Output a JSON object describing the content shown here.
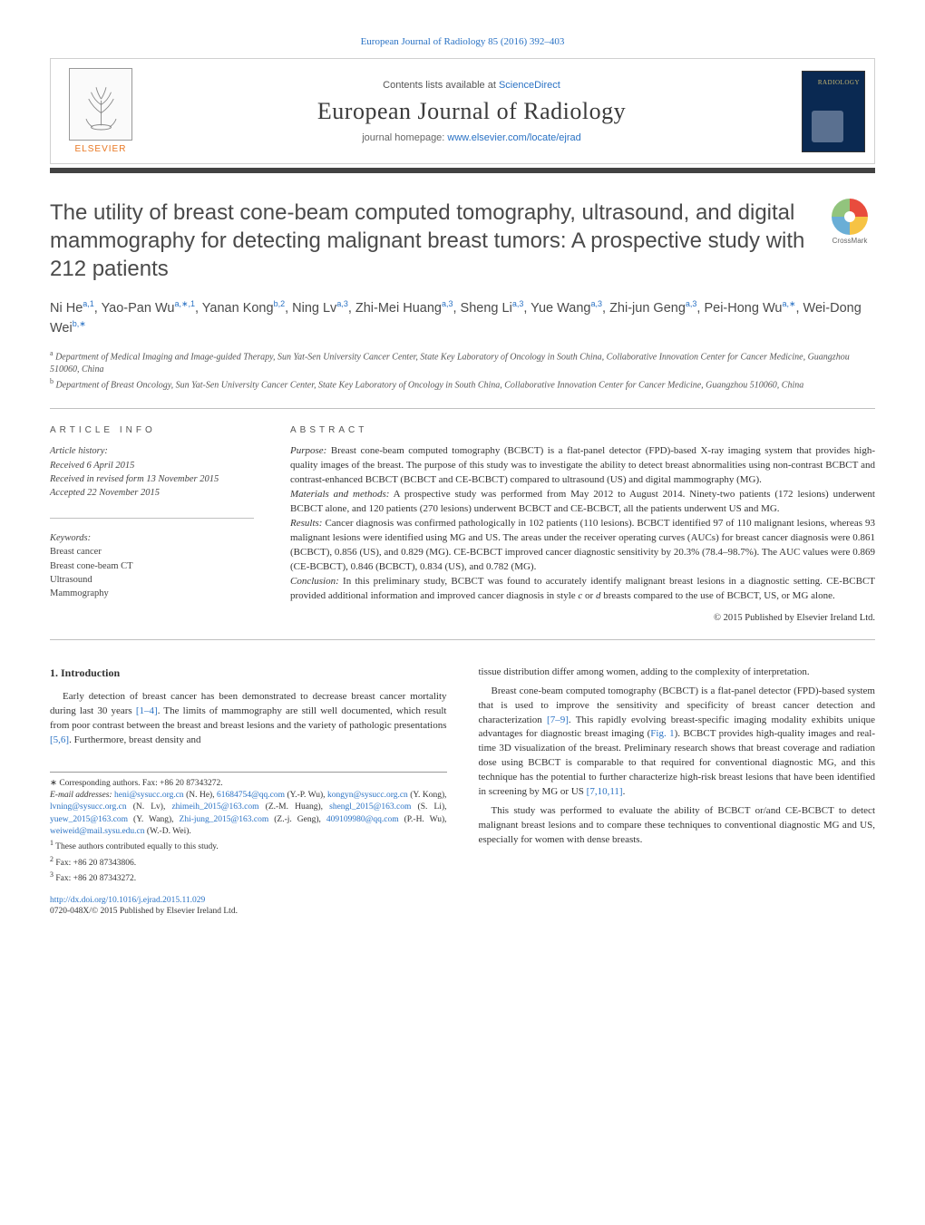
{
  "header": {
    "citation": "European Journal of Radiology 85 (2016) 392–403",
    "contents_prefix": "Contents lists available at ",
    "contents_link": "ScienceDirect",
    "journal_name": "European Journal of Radiology",
    "homepage_prefix": "journal homepage: ",
    "homepage_url": "www.elsevier.com/locate/ejrad",
    "publisher": "ELSEVIER"
  },
  "crossmark_label": "CrossMark",
  "title": "The utility of breast cone-beam computed tomography, ultrasound, and digital mammography for detecting malignant breast tumors: A prospective study with 212 patients",
  "authors_html": "Ni He<sup>a,1</sup>, Yao-Pan Wu<sup>a,∗,1</sup>, Yanan Kong<sup>b,2</sup>, Ning Lv<sup>a,3</sup>, Zhi-Mei Huang<sup>a,3</sup>, Sheng Li<sup>a,3</sup>, Yue Wang<sup>a,3</sup>, Zhi-jun Geng<sup>a,3</sup>, Pei-Hong Wu<sup>a,∗</sup>, Wei-Dong Wei<sup>b,∗</sup>",
  "affiliations": [
    {
      "mark": "a",
      "text": "Department of Medical Imaging and Image-guided Therapy, Sun Yat-Sen University Cancer Center, State Key Laboratory of Oncology in South China, Collaborative Innovation Center for Cancer Medicine, Guangzhou 510060, China"
    },
    {
      "mark": "b",
      "text": "Department of Breast Oncology, Sun Yat-Sen University Cancer Center, State Key Laboratory of Oncology in South China, Collaborative Innovation Center for Cancer Medicine, Guangzhou 510060, China"
    }
  ],
  "article_info_head": "ARTICLE INFO",
  "abstract_head": "ABSTRACT",
  "history": {
    "label": "Article history:",
    "received": "Received 6 April 2015",
    "revised": "Received in revised form 13 November 2015",
    "accepted": "Accepted 22 November 2015"
  },
  "keywords": {
    "label": "Keywords:",
    "items": [
      "Breast cancer",
      "Breast cone-beam CT",
      "Ultrasound",
      "Mammography"
    ]
  },
  "abstract": {
    "purpose_label": "Purpose:",
    "purpose": " Breast cone-beam computed tomography (BCBCT) is a flat-panel detector (FPD)-based X-ray imaging system that provides high-quality images of the breast. The purpose of this study was to investigate the ability to detect breast abnormalities using non-contrast BCBCT and contrast-enhanced BCBCT (BCBCT and CE-BCBCT) compared to ultrasound (US) and digital mammography (MG).",
    "mm_label": "Materials and methods:",
    "mm": " A prospective study was performed from May 2012 to August 2014. Ninety-two patients (172 lesions) underwent BCBCT alone, and 120 patients (270 lesions) underwent BCBCT and CE-BCBCT, all the patients underwent US and MG.",
    "results_label": "Results:",
    "results": " Cancer diagnosis was confirmed pathologically in 102 patients (110 lesions). BCBCT identified 97 of 110 malignant lesions, whereas 93 malignant lesions were identified using MG and US. The areas under the receiver operating curves (AUCs) for breast cancer diagnosis were 0.861 (BCBCT), 0.856 (US), and 0.829 (MG). CE-BCBCT improved cancer diagnostic sensitivity by 20.3% (78.4–98.7%). The AUC values were 0.869 (CE-BCBCT), 0.846 (BCBCT), 0.834 (US), and 0.782 (MG).",
    "conclusion_label": "Conclusion:",
    "conclusion_1": " In this preliminary study, BCBCT was found to accurately identify malignant breast lesions in a diagnostic setting. CE-BCBCT provided additional information and improved cancer diagnosis in style ",
    "conclusion_em1": "c",
    "conclusion_2": " or ",
    "conclusion_em2": "d",
    "conclusion_3": " breasts compared to the use of BCBCT, US, or MG alone.",
    "copyright": "© 2015 Published by Elsevier Ireland Ltd."
  },
  "intro": {
    "heading": "1. Introduction",
    "p_left_1a": "Early detection of breast cancer has been demonstrated to decrease breast cancer mortality during last 30 years ",
    "p_left_1_cite1": "[1–4]",
    "p_left_1b": ". The limits of mammography are still well documented, which result from poor contrast between the breast and breast lesions and the variety of pathologic presentations ",
    "p_left_1_cite2": "[5,6]",
    "p_left_1c": ". Furthermore, breast density and",
    "p_right_1": "tissue distribution differ among women, adding to the complexity of interpretation.",
    "p_right_2a": "Breast cone-beam computed tomography (BCBCT) is a flat-panel detector (FPD)-based system that is used to improve the sensitivity and specificity of breast cancer detection and characterization ",
    "p_right_2_cite1": "[7–9]",
    "p_right_2b": ". This rapidly evolving breast-specific imaging modality exhibits unique advantages for diagnostic breast imaging (",
    "p_right_2_fig": "Fig. 1",
    "p_right_2c": "). BCBCT provides high-quality images and real-time 3D visualization of the breast. Preliminary research shows that breast coverage and radiation dose using BCBCT is comparable to that required for conventional diagnostic MG, and this technique has the potential to further characterize high-risk breast lesions that have been identified in screening by MG or US ",
    "p_right_2_cite2": "[7,10,11]",
    "p_right_2d": ".",
    "p_right_3": "This study was performed to evaluate the ability of BCBCT or/and CE-BCBCT to detect malignant breast lesions and to compare these techniques to conventional diagnostic MG and US, especially for women with dense breasts."
  },
  "footnotes": {
    "corr": "∗ Corresponding authors. Fax: +86 20 87343272.",
    "email_label": "E-mail addresses: ",
    "emails_html": "<a>heni@sysucc.org.cn</a> (N. He), <a>61684754@qq.com</a> (Y.-P. Wu), <a>kongyn@sysucc.org.cn</a> (Y. Kong), <a>lvning@sysucc.org.cn</a> (N. Lv), <a>zhimeih_2015@163.com</a> (Z.-M. Huang), <a>shengl_2015@163.com</a> (S. Li), <a>yuew_2015@163.com</a> (Y. Wang), <a>Zhi-jung_2015@163.com</a> (Z.-j. Geng), <a>409109980@qq.com</a> (P.-H. Wu), <a>weiweid@mail.sysu.edu.cn</a> (W.-D. Wei).",
    "n1": "These authors contributed equally to this study.",
    "n2": "Fax: +86 20 87343806.",
    "n3": "Fax: +86 20 87343272."
  },
  "bottom": {
    "doi": "http://dx.doi.org/10.1016/j.ejrad.2015.11.029",
    "issn_copy": "0720-048X/© 2015 Published by Elsevier Ireland Ltd."
  },
  "colors": {
    "link": "#2a72c4",
    "orange": "#e87722",
    "darkbar": "#424242",
    "cover_bg": "#0a2952"
  }
}
